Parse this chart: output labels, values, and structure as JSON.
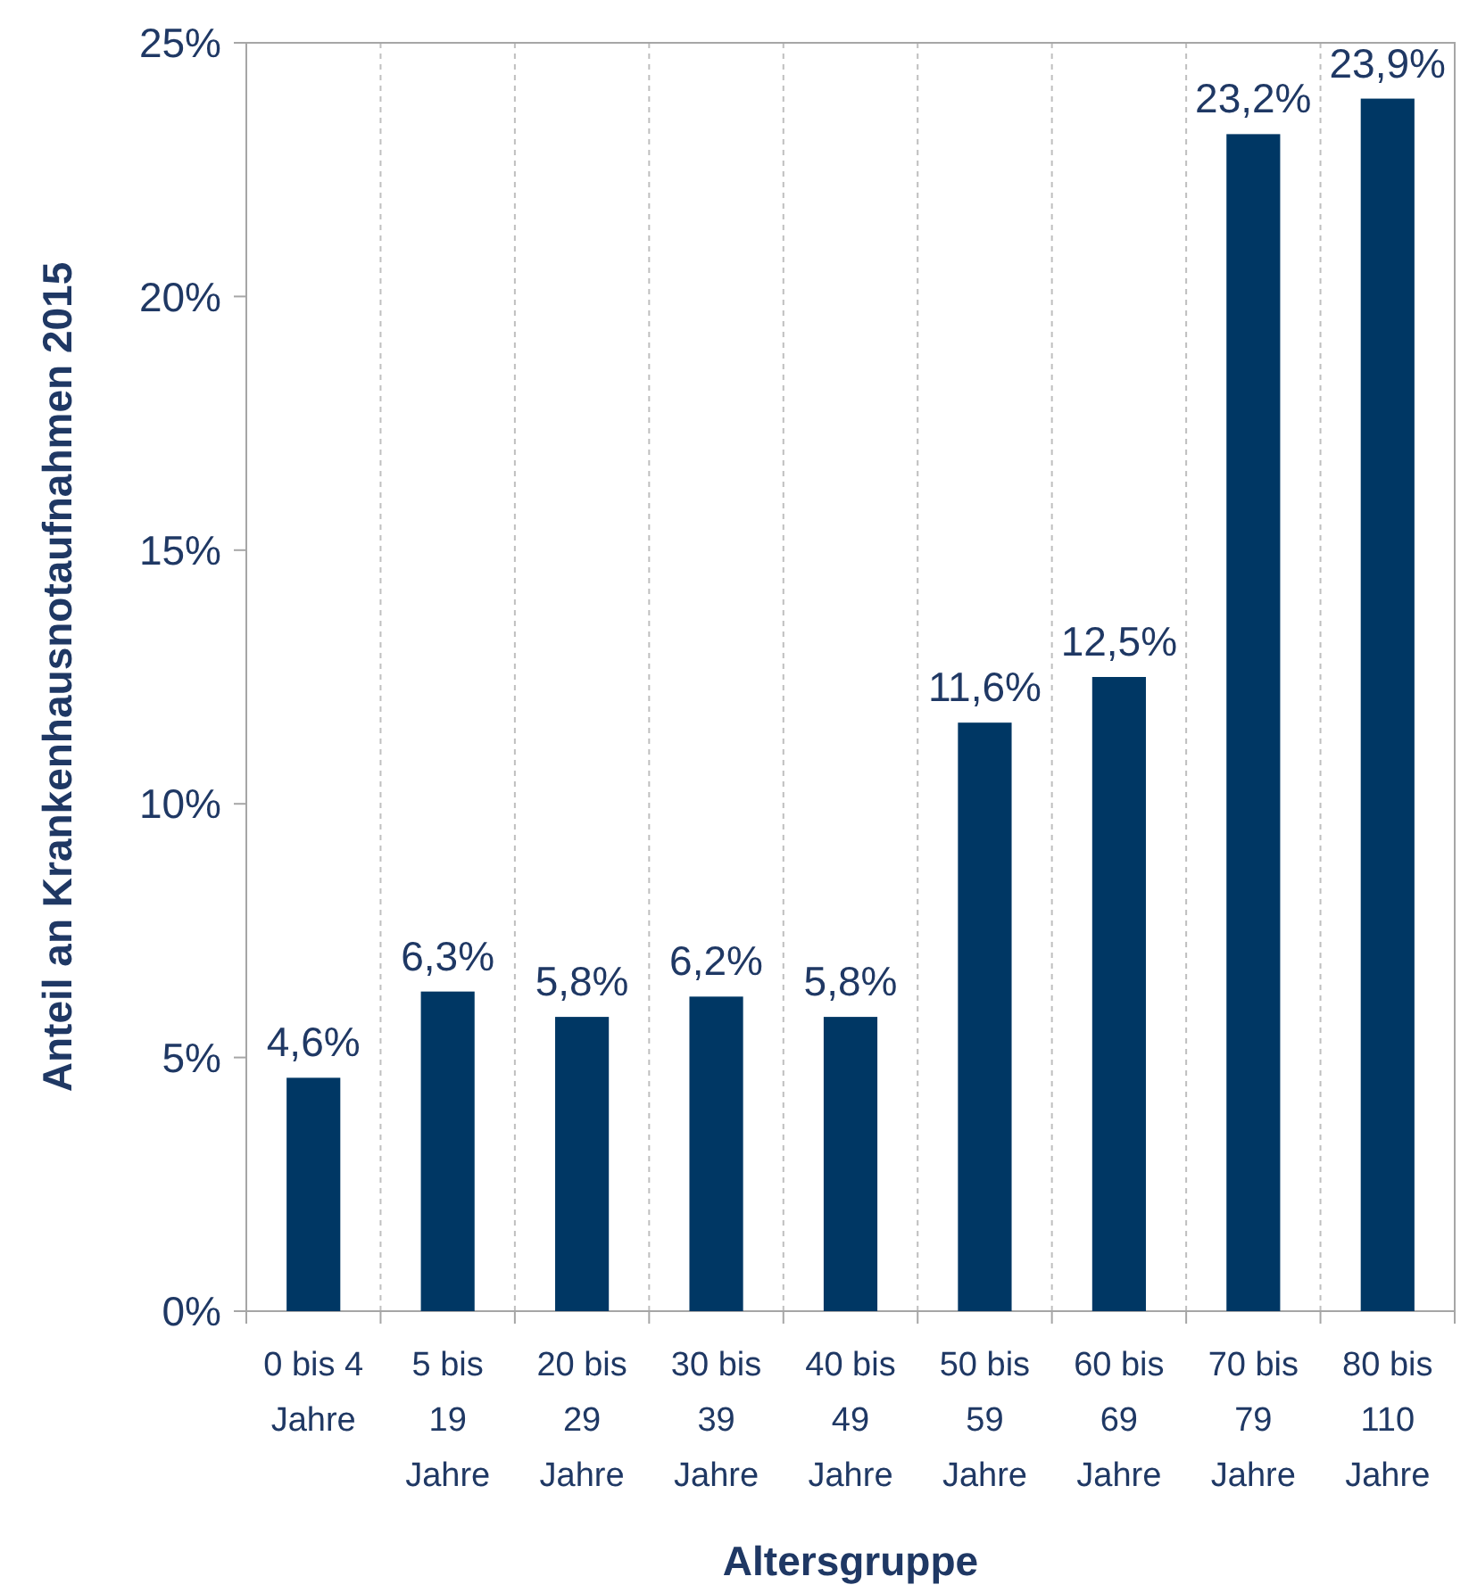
{
  "chart_data": {
    "type": "bar",
    "xlabel": "Altersgruppe",
    "ylabel": "Anteil an Krankenhausnotaufnahmen 2015",
    "categories": [
      "0 bis 4 Jahre",
      "5 bis 19 Jahre",
      "20 bis 29 Jahre",
      "30 bis 39 Jahre",
      "40 bis 49 Jahre",
      "50 bis 59 Jahre",
      "60 bis 69 Jahre",
      "70 bis 79 Jahre",
      "80 bis 110 Jahre"
    ],
    "values": [
      4.6,
      6.3,
      5.8,
      6.2,
      5.8,
      11.6,
      12.5,
      23.2,
      23.9
    ],
    "value_labels": [
      "4,6%",
      "6,3%",
      "5,8%",
      "6,2%",
      "5,8%",
      "11,6%",
      "12,5%",
      "23,2%",
      "23,9%"
    ],
    "color": "#003764",
    "ylim": [
      0,
      25
    ],
    "yticks": [
      {
        "value": 0,
        "label": "0%"
      },
      {
        "value": 5,
        "label": "5%"
      },
      {
        "value": 10,
        "label": "10%"
      },
      {
        "value": 15,
        "label": "15%"
      },
      {
        "value": 20,
        "label": "20%"
      },
      {
        "value": 25,
        "label": "25%"
      }
    ],
    "grid": "x"
  }
}
